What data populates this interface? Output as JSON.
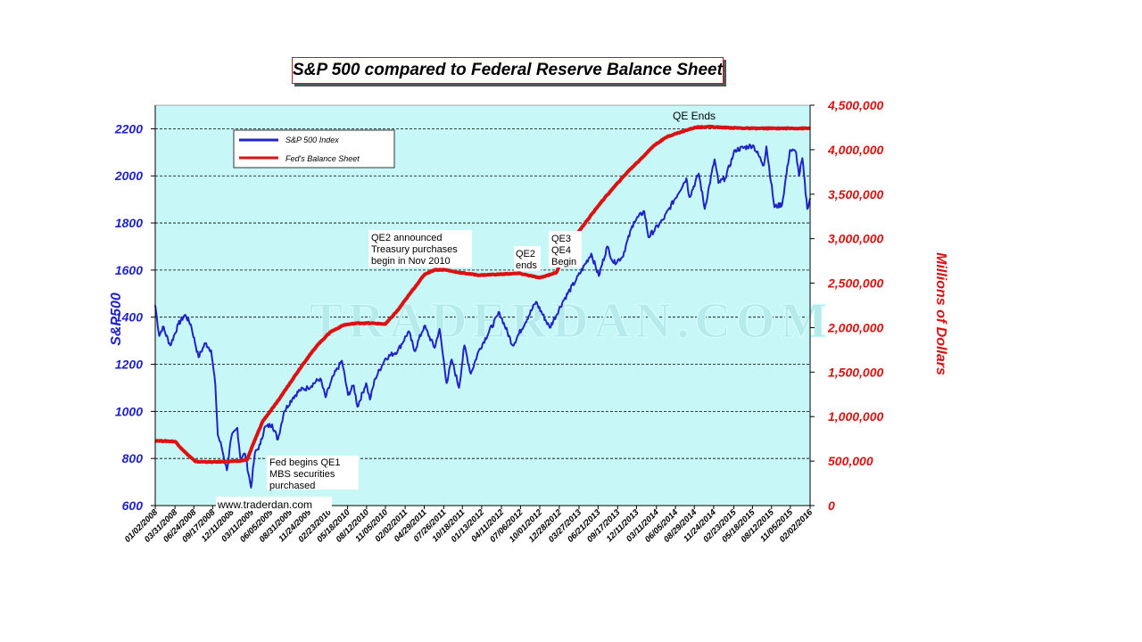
{
  "chart_data": {
    "type": "line",
    "title": "S&P 500 compared to Federal Reserve Balance Sheet",
    "ylabel_left": "S&P500",
    "ylabel_right": "Millions of Dollars",
    "ylim_left": [
      600,
      2300
    ],
    "ylim_right": [
      0,
      4500000
    ],
    "yticks_left": [
      "600",
      "800",
      "1000",
      "1200",
      "1400",
      "1600",
      "1800",
      "2000",
      "2200"
    ],
    "yticks_right": [
      "0",
      "500,000",
      "1,000,000",
      "1,500,000",
      "2,000,000",
      "2,500,000",
      "3,000,000",
      "3,500,000",
      "4,000,000",
      "4,500,000"
    ],
    "xticks": [
      "01/02/2008",
      "03/31/2008",
      "06/24/2008",
      "09/17/2008",
      "12/11/2008",
      "03/11/2009",
      "06/05/2009",
      "08/31/2009",
      "11/24/2009",
      "02/23/2010",
      "05/18/2010",
      "08/12/2010",
      "11/05/2010",
      "02/02/2011",
      "04/29/2011",
      "07/26/2011",
      "10/18/2011",
      "01/13/2012",
      "04/11/2012",
      "07/06/2012",
      "10/01/2012",
      "12/28/2012",
      "03/27/2013",
      "06/21/2013",
      "09/17/2013",
      "12/11/2013",
      "03/11/2014",
      "06/05/2014",
      "08/29/2014",
      "11/24/2014",
      "02/23/2015",
      "05/18/2015",
      "08/12/2015",
      "11/05/2015",
      "02/02/2016"
    ],
    "x_range": [
      "01/02/2008",
      "02/02/2016"
    ],
    "grid": "horizontal",
    "legend_position": "top-left",
    "series": [
      {
        "name": "S&P 500 Index",
        "axis": "left",
        "color": "#1f23c8",
        "points": [
          [
            "2008-01-02",
            1450
          ],
          [
            "2008-01-20",
            1320
          ],
          [
            "2008-02-05",
            1360
          ],
          [
            "2008-03-10",
            1280
          ],
          [
            "2008-04-15",
            1370
          ],
          [
            "2008-05-15",
            1410
          ],
          [
            "2008-06-10",
            1370
          ],
          [
            "2008-07-15",
            1230
          ],
          [
            "2008-08-15",
            1290
          ],
          [
            "2008-09-10",
            1260
          ],
          [
            "2008-09-29",
            1110
          ],
          [
            "2008-10-10",
            900
          ],
          [
            "2008-10-27",
            850
          ],
          [
            "2008-11-20",
            750
          ],
          [
            "2008-12-10",
            890
          ],
          [
            "2009-01-06",
            930
          ],
          [
            "2009-01-20",
            800
          ],
          [
            "2009-02-10",
            820
          ],
          [
            "2009-03-09",
            676
          ],
          [
            "2009-03-26",
            820
          ],
          [
            "2009-04-20",
            860
          ],
          [
            "2009-05-08",
            930
          ],
          [
            "2009-06-12",
            945
          ],
          [
            "2009-07-08",
            880
          ],
          [
            "2009-08-05",
            1000
          ],
          [
            "2009-09-15",
            1060
          ],
          [
            "2009-10-15",
            1090
          ],
          [
            "2009-11-20",
            1100
          ],
          [
            "2010-01-15",
            1140
          ],
          [
            "2010-02-08",
            1060
          ],
          [
            "2010-03-15",
            1150
          ],
          [
            "2010-04-23",
            1215
          ],
          [
            "2010-05-20",
            1070
          ],
          [
            "2010-06-15",
            1110
          ],
          [
            "2010-07-02",
            1020
          ],
          [
            "2010-08-10",
            1120
          ],
          [
            "2010-08-27",
            1050
          ],
          [
            "2010-09-20",
            1140
          ],
          [
            "2010-11-05",
            1225
          ],
          [
            "2010-12-31",
            1258
          ],
          [
            "2011-02-18",
            1340
          ],
          [
            "2011-03-16",
            1256
          ],
          [
            "2011-04-29",
            1363
          ],
          [
            "2011-06-15",
            1270
          ],
          [
            "2011-07-07",
            1350
          ],
          [
            "2011-08-08",
            1120
          ],
          [
            "2011-08-31",
            1220
          ],
          [
            "2011-10-03",
            1100
          ],
          [
            "2011-10-27",
            1280
          ],
          [
            "2011-11-25",
            1160
          ],
          [
            "2012-01-01",
            1260
          ],
          [
            "2012-04-02",
            1420
          ],
          [
            "2012-06-01",
            1280
          ],
          [
            "2012-09-14",
            1465
          ],
          [
            "2012-11-15",
            1355
          ],
          [
            "2013-01-15",
            1470
          ],
          [
            "2013-03-15",
            1560
          ],
          [
            "2013-05-21",
            1670
          ],
          [
            "2013-06-24",
            1575
          ],
          [
            "2013-08-01",
            1700
          ],
          [
            "2013-08-30",
            1630
          ],
          [
            "2013-10-08",
            1655
          ],
          [
            "2013-11-29",
            1805
          ],
          [
            "2014-01-15",
            1850
          ],
          [
            "2014-02-03",
            1740
          ],
          [
            "2014-04-11",
            1815
          ],
          [
            "2014-07-24",
            1990
          ],
          [
            "2014-08-07",
            1910
          ],
          [
            "2014-09-18",
            2010
          ],
          [
            "2014-10-15",
            1860
          ],
          [
            "2014-11-28",
            2070
          ],
          [
            "2014-12-16",
            1970
          ],
          [
            "2015-01-15",
            1990
          ],
          [
            "2015-03-01",
            2110
          ],
          [
            "2015-05-21",
            2130
          ],
          [
            "2015-07-08",
            2045
          ],
          [
            "2015-07-20",
            2125
          ],
          [
            "2015-08-25",
            1867
          ],
          [
            "2015-09-29",
            1880
          ],
          [
            "2015-11-03",
            2110
          ],
          [
            "2015-12-01",
            2100
          ],
          [
            "2015-12-14",
            2000
          ],
          [
            "2015-12-29",
            2075
          ],
          [
            "2016-01-20",
            1860
          ],
          [
            "2016-02-02",
            1905
          ]
        ]
      },
      {
        "name": "Fed's Balance Sheet",
        "axis": "right",
        "color": "#dd1111",
        "points": [
          [
            "2008-01-02",
            730000
          ],
          [
            "2008-04-01",
            720000
          ],
          [
            "2008-05-15",
            600000
          ],
          [
            "2008-07-01",
            495000
          ],
          [
            "2008-09-10",
            490000
          ],
          [
            "2008-11-15",
            495000
          ],
          [
            "2009-01-15",
            500000
          ],
          [
            "2009-02-20",
            520000
          ],
          [
            "2009-03-20",
            700000
          ],
          [
            "2009-05-01",
            950000
          ],
          [
            "2009-07-01",
            1150000
          ],
          [
            "2009-09-01",
            1380000
          ],
          [
            "2009-11-01",
            1600000
          ],
          [
            "2010-01-01",
            1800000
          ],
          [
            "2010-03-01",
            1950000
          ],
          [
            "2010-05-01",
            2030000
          ],
          [
            "2010-07-01",
            2050000
          ],
          [
            "2010-09-01",
            2050000
          ],
          [
            "2010-11-05",
            2040000
          ],
          [
            "2011-01-01",
            2200000
          ],
          [
            "2011-03-01",
            2400000
          ],
          [
            "2011-05-01",
            2600000
          ],
          [
            "2011-06-15",
            2650000
          ],
          [
            "2011-08-01",
            2650000
          ],
          [
            "2011-10-01",
            2620000
          ],
          [
            "2012-01-01",
            2590000
          ],
          [
            "2012-04-01",
            2600000
          ],
          [
            "2012-07-01",
            2610000
          ],
          [
            "2012-10-01",
            2560000
          ],
          [
            "2012-12-15",
            2620000
          ],
          [
            "2013-01-15",
            2800000
          ],
          [
            "2013-03-01",
            3000000
          ],
          [
            "2013-05-01",
            3200000
          ],
          [
            "2013-07-01",
            3400000
          ],
          [
            "2013-09-01",
            3580000
          ],
          [
            "2013-11-01",
            3750000
          ],
          [
            "2014-01-01",
            3900000
          ],
          [
            "2014-03-01",
            4050000
          ],
          [
            "2014-05-01",
            4150000
          ],
          [
            "2014-07-01",
            4200000
          ],
          [
            "2014-09-01",
            4250000
          ],
          [
            "2014-10-30",
            4260000
          ],
          [
            "2015-01-01",
            4250000
          ],
          [
            "2015-05-01",
            4240000
          ],
          [
            "2015-10-01",
            4240000
          ],
          [
            "2016-02-02",
            4240000
          ]
        ]
      }
    ],
    "annotations": [
      {
        "lines": [
          "QE Ends"
        ],
        "date": "2014-10-30"
      },
      {
        "lines": [
          "QE2 announced",
          "Treasury purchases",
          "begin in Nov 2010"
        ],
        "date": "2010-11-05"
      },
      {
        "lines": [
          "QE2",
          "ends"
        ],
        "date": "2011-06-30"
      },
      {
        "lines": [
          "QE3",
          "QE4",
          "Begin"
        ],
        "date": "2012-12-15"
      },
      {
        "lines": [
          "Fed begins QE1",
          "MBS securities",
          "purchased"
        ],
        "date": "2009-01-15"
      },
      {
        "lines": [
          "www.traderdan.com"
        ],
        "date": ""
      }
    ],
    "watermark": "TRADERDAN.COM"
  }
}
